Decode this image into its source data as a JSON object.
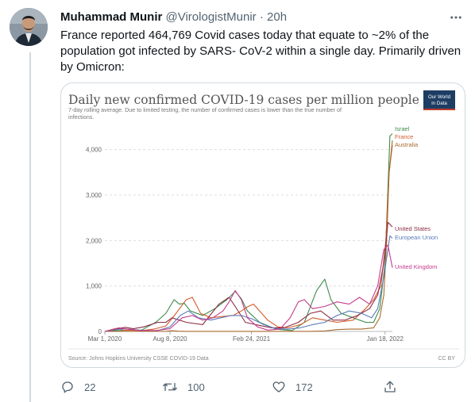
{
  "tweet": {
    "display_name": "Muhammad Munir",
    "handle": "@VirologistMunir",
    "separator": "·",
    "time": "20h",
    "text": "France reported 464,769 Covid cases today that equate to ~2% of the population got infected by SARS- CoV-2 within a single day. Primarily driven by Omicron:"
  },
  "actions": {
    "reply_count": "22",
    "retweet_count": "100",
    "like_count": "172"
  },
  "icons": {
    "more": "more-horizontal-icon",
    "reply": "reply-icon",
    "retweet": "retweet-icon",
    "like": "like-icon",
    "share": "share-icon"
  },
  "colors": {
    "text_primary": "#0f1419",
    "text_secondary": "#536471",
    "border": "#cfd9de",
    "owid_badge": "#1d3d63"
  },
  "chart_data": {
    "type": "line",
    "title": "Daily new confirmed COVID-19 cases per million people",
    "subtitle_line1": "7-day rolling average. Due to limited testing, the number of confirmed cases is lower than the true number of",
    "subtitle_line2": "infections.",
    "badge_line1": "Our World",
    "badge_line2": "in Data",
    "source": "Source: Johns Hopkins University CSSE COVID-19 Data",
    "license": "CC BY",
    "x_tick_labels": [
      "Mar 1, 2020",
      "Aug 8, 2020",
      "Feb 24, 2021",
      "Jan 18, 2022"
    ],
    "x_tick_days": [
      0,
      160,
      360,
      688
    ],
    "xlim_days": [
      0,
      706
    ],
    "y_tick_labels": [
      "0",
      "1,000",
      "2,000",
      "3,000",
      "4,000"
    ],
    "y_ticks": [
      0,
      1000,
      2000,
      3000,
      4000
    ],
    "ylim": [
      0,
      4500
    ],
    "grid": true,
    "series": [
      {
        "name": "Israel",
        "color": "#3d8b4a",
        "points": [
          [
            0,
            0
          ],
          [
            25,
            20
          ],
          [
            60,
            25
          ],
          [
            90,
            30
          ],
          [
            125,
            200
          ],
          [
            150,
            400
          ],
          [
            170,
            700
          ],
          [
            183,
            600
          ],
          [
            195,
            620
          ],
          [
            210,
            450
          ],
          [
            240,
            350
          ],
          [
            270,
            500
          ],
          [
            300,
            700
          ],
          [
            320,
            880
          ],
          [
            335,
            720
          ],
          [
            350,
            450
          ],
          [
            380,
            200
          ],
          [
            420,
            50
          ],
          [
            460,
            20
          ],
          [
            490,
            200
          ],
          [
            520,
            900
          ],
          [
            540,
            1150
          ],
          [
            555,
            700
          ],
          [
            580,
            400
          ],
          [
            610,
            300
          ],
          [
            640,
            200
          ],
          [
            660,
            200
          ],
          [
            675,
            500
          ],
          [
            688,
            1500
          ],
          [
            700,
            4300
          ],
          [
            706,
            4350
          ]
        ]
      },
      {
        "name": "France",
        "color": "#d45a2a",
        "points": [
          [
            0,
            0
          ],
          [
            20,
            50
          ],
          [
            30,
            70
          ],
          [
            45,
            30
          ],
          [
            90,
            20
          ],
          [
            120,
            50
          ],
          [
            150,
            120
          ],
          [
            175,
            400
          ],
          [
            200,
            700
          ],
          [
            215,
            750
          ],
          [
            235,
            400
          ],
          [
            260,
            300
          ],
          [
            290,
            330
          ],
          [
            315,
            350
          ],
          [
            335,
            450
          ],
          [
            352,
            550
          ],
          [
            365,
            600
          ],
          [
            380,
            450
          ],
          [
            400,
            250
          ],
          [
            425,
            100
          ],
          [
            450,
            80
          ],
          [
            480,
            150
          ],
          [
            510,
            300
          ],
          [
            540,
            250
          ],
          [
            570,
            200
          ],
          [
            610,
            250
          ],
          [
            640,
            500
          ],
          [
            660,
            700
          ],
          [
            678,
            1000
          ],
          [
            690,
            2000
          ],
          [
            698,
            3500
          ],
          [
            706,
            4100
          ]
        ]
      },
      {
        "name": "Australia",
        "color": "#a86a2e",
        "points": [
          [
            0,
            0
          ],
          [
            150,
            3
          ],
          [
            165,
            15
          ],
          [
            180,
            5
          ],
          [
            200,
            2
          ],
          [
            500,
            2
          ],
          [
            540,
            10
          ],
          [
            570,
            40
          ],
          [
            600,
            50
          ],
          [
            630,
            50
          ],
          [
            660,
            80
          ],
          [
            675,
            300
          ],
          [
            685,
            800
          ],
          [
            692,
            2000
          ],
          [
            698,
            3500
          ],
          [
            706,
            4200
          ]
        ]
      },
      {
        "name": "United States",
        "color": "#8c2e44",
        "points": [
          [
            0,
            0
          ],
          [
            30,
            60
          ],
          [
            50,
            90
          ],
          [
            70,
            60
          ],
          [
            95,
            100
          ],
          [
            130,
            200
          ],
          [
            150,
            200
          ],
          [
            165,
            300
          ],
          [
            200,
            200
          ],
          [
            240,
            150
          ],
          [
            280,
            600
          ],
          [
            305,
            750
          ],
          [
            320,
            550
          ],
          [
            345,
            200
          ],
          [
            370,
            150
          ],
          [
            410,
            80
          ],
          [
            440,
            80
          ],
          [
            475,
            200
          ],
          [
            505,
            400
          ],
          [
            530,
            450
          ],
          [
            560,
            250
          ],
          [
            590,
            250
          ],
          [
            620,
            350
          ],
          [
            650,
            500
          ],
          [
            670,
            800
          ],
          [
            685,
            1500
          ],
          [
            695,
            2400
          ],
          [
            706,
            2300
          ]
        ]
      },
      {
        "name": "European Union",
        "color": "#5b7bb8",
        "points": [
          [
            0,
            0
          ],
          [
            20,
            30
          ],
          [
            45,
            60
          ],
          [
            70,
            40
          ],
          [
            100,
            20
          ],
          [
            130,
            20
          ],
          [
            160,
            100
          ],
          [
            185,
            350
          ],
          [
            205,
            450
          ],
          [
            230,
            300
          ],
          [
            260,
            250
          ],
          [
            285,
            300
          ],
          [
            310,
            350
          ],
          [
            335,
            350
          ],
          [
            360,
            280
          ],
          [
            390,
            150
          ],
          [
            420,
            60
          ],
          [
            450,
            50
          ],
          [
            480,
            80
          ],
          [
            510,
            150
          ],
          [
            540,
            200
          ],
          [
            570,
            350
          ],
          [
            600,
            450
          ],
          [
            630,
            400
          ],
          [
            655,
            300
          ],
          [
            670,
            500
          ],
          [
            685,
            1200
          ],
          [
            700,
            2100
          ],
          [
            706,
            2050
          ]
        ]
      },
      {
        "name": "United Kingdom",
        "color": "#c43b8e",
        "points": [
          [
            0,
            0
          ],
          [
            20,
            40
          ],
          [
            35,
            80
          ],
          [
            55,
            50
          ],
          [
            90,
            20
          ],
          [
            125,
            20
          ],
          [
            160,
            60
          ],
          [
            190,
            300
          ],
          [
            215,
            350
          ],
          [
            240,
            250
          ],
          [
            265,
            300
          ],
          [
            290,
            450
          ],
          [
            305,
            650
          ],
          [
            320,
            900
          ],
          [
            335,
            700
          ],
          [
            350,
            300
          ],
          [
            375,
            100
          ],
          [
            400,
            30
          ],
          [
            430,
            50
          ],
          [
            455,
            300
          ],
          [
            475,
            650
          ],
          [
            490,
            700
          ],
          [
            510,
            500
          ],
          [
            540,
            550
          ],
          [
            570,
            650
          ],
          [
            600,
            600
          ],
          [
            625,
            750
          ],
          [
            650,
            600
          ],
          [
            670,
            1000
          ],
          [
            685,
            1800
          ],
          [
            695,
            1900
          ],
          [
            706,
            1400
          ]
        ]
      }
    ]
  }
}
